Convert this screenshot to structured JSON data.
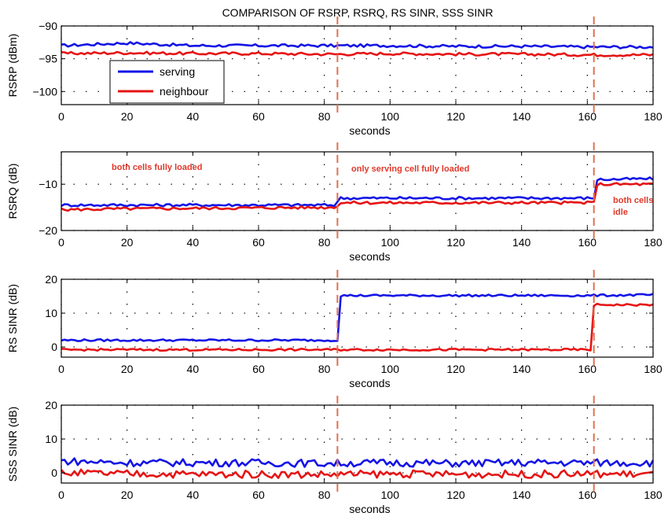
{
  "title": "COMPARISON OF RSRP, RSRQ, RS SINR, SSS SINR",
  "colors": {
    "serving": "#1414e6",
    "neighbour": "#e61414",
    "marker": "#e07050",
    "annotation": "#e0382a"
  },
  "legend": {
    "serving": "serving",
    "neighbour": "neighbour"
  },
  "markers": [
    84,
    162
  ],
  "annotations": [
    "both cells fully loaded",
    "only serving cell fully loaded",
    "both cells",
    "idle"
  ],
  "chart_data": [
    {
      "type": "line",
      "ylabel": "RSRP (dBm)",
      "xlabel": "seconds",
      "xlim": [
        0,
        180
      ],
      "ylim": [
        -102,
        -90
      ],
      "xticks": [
        "0",
        "20",
        "40",
        "60",
        "80",
        "100",
        "120",
        "140",
        "160",
        "180"
      ],
      "yticks": [
        "-90",
        "-95",
        "-100"
      ],
      "series": [
        {
          "name": "serving",
          "x": [
            0,
            20,
            40,
            60,
            80,
            84,
            100,
            120,
            140,
            160,
            162,
            180
          ],
          "values": [
            -93,
            -92.6,
            -93,
            -93,
            -93,
            -93,
            -93,
            -93.1,
            -93.1,
            -93.2,
            -93.2,
            -93.2
          ]
        },
        {
          "name": "neighbour",
          "x": [
            0,
            20,
            40,
            60,
            80,
            84,
            100,
            120,
            140,
            160,
            162,
            180
          ],
          "values": [
            -94.2,
            -94.1,
            -94.2,
            -94.2,
            -94.3,
            -94.3,
            -94.2,
            -94.3,
            -94.3,
            -94.4,
            -94.4,
            -94.4
          ]
        }
      ]
    },
    {
      "type": "line",
      "ylabel": "RSRQ (dB)",
      "xlabel": "seconds",
      "xlim": [
        0,
        180
      ],
      "ylim": [
        -20,
        -3
      ],
      "xticks": [
        "0",
        "20",
        "40",
        "60",
        "80",
        "100",
        "120",
        "140",
        "160",
        "180"
      ],
      "yticks": [
        "-10",
        "-20"
      ],
      "series": [
        {
          "name": "serving",
          "x": [
            0,
            20,
            40,
            60,
            80,
            83,
            85,
            100,
            120,
            140,
            160,
            162,
            163,
            180
          ],
          "values": [
            -14.5,
            -14.5,
            -14.5,
            -14.5,
            -14.5,
            -14.5,
            -13,
            -13,
            -13,
            -13,
            -13,
            -13,
            -9,
            -8.8
          ]
        },
        {
          "name": "neighbour",
          "x": [
            0,
            20,
            40,
            60,
            80,
            83,
            85,
            100,
            120,
            140,
            160,
            162,
            163,
            180
          ],
          "values": [
            -15.5,
            -15.3,
            -15.2,
            -15.1,
            -15,
            -15,
            -14,
            -14,
            -14,
            -14,
            -14,
            -14,
            -10,
            -10
          ]
        }
      ]
    },
    {
      "type": "line",
      "ylabel": "RS SINR (dB)",
      "xlabel": "seconds",
      "xlim": [
        0,
        180
      ],
      "ylim": [
        -3,
        20
      ],
      "xticks": [
        "0",
        "20",
        "40",
        "60",
        "80",
        "100",
        "120",
        "140",
        "160",
        "180"
      ],
      "yticks": [
        "20",
        "10",
        "0"
      ],
      "series": [
        {
          "name": "serving",
          "x": [
            0,
            20,
            40,
            60,
            80,
            84,
            85,
            100,
            120,
            140,
            160,
            180
          ],
          "values": [
            2,
            2,
            2,
            2,
            2,
            2,
            15.2,
            15.2,
            15.2,
            15.2,
            15.2,
            15.4
          ]
        },
        {
          "name": "neighbour",
          "x": [
            0,
            20,
            40,
            60,
            80,
            100,
            120,
            140,
            160,
            161,
            162,
            163,
            180
          ],
          "values": [
            -0.8,
            -0.8,
            -0.8,
            -0.8,
            -0.8,
            -0.8,
            -0.8,
            -0.8,
            -0.8,
            -0.8,
            12,
            12.5,
            12.4
          ]
        }
      ]
    },
    {
      "type": "line",
      "ylabel": "SSS SINR (dB)",
      "xlabel": "seconds",
      "xlim": [
        0,
        180
      ],
      "ylim": [
        -3,
        20
      ],
      "xticks": [
        "0",
        "20",
        "40",
        "60",
        "80",
        "100",
        "120",
        "140",
        "160",
        "180"
      ],
      "yticks": [
        "20",
        "10",
        "0"
      ],
      "series": [
        {
          "name": "serving",
          "x": [
            0,
            20,
            40,
            60,
            80,
            100,
            120,
            140,
            160,
            180
          ],
          "values": [
            3.5,
            3,
            3,
            3,
            2.8,
            3,
            2.8,
            3,
            3,
            3
          ]
        },
        {
          "name": "neighbour",
          "x": [
            0,
            20,
            40,
            60,
            80,
            100,
            120,
            140,
            160,
            180
          ],
          "values": [
            0,
            -0.3,
            -0.4,
            -0.4,
            -0.5,
            -0.3,
            -0.4,
            -0.4,
            -0.3,
            -0.4
          ]
        }
      ]
    }
  ]
}
